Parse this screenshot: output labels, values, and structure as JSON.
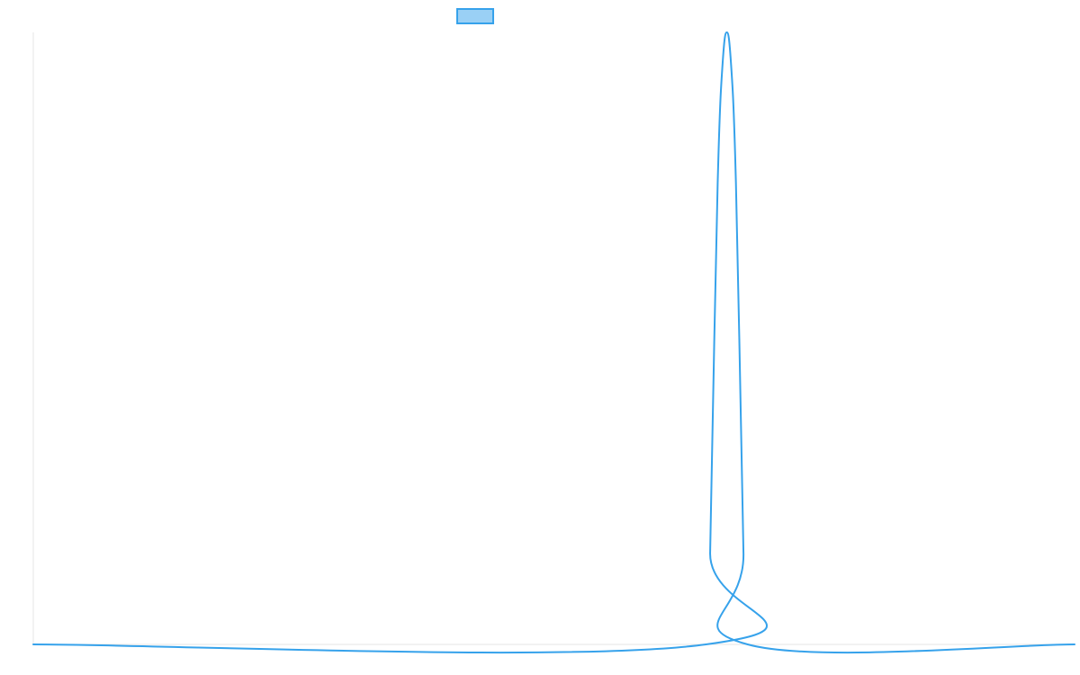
{
  "chart_data": {
    "type": "line",
    "title": "",
    "xlabel": "",
    "ylabel": "",
    "legend": {
      "placement": "top-center",
      "entries": [
        {
          "label": "",
          "color": "#36a2eb",
          "fill": "#9ad0f5"
        }
      ]
    },
    "grid": false,
    "xlim": [
      0,
      1000
    ],
    "ylim": [
      0,
      1
    ],
    "series": [
      {
        "color": "#36a2eb",
        "x": [
          0,
          646,
          650,
          654,
          658,
          662,
          666,
          670,
          674,
          678,
          682,
          686,
          1000
        ],
        "values": [
          0,
          0,
          0.15,
          0.5,
          0.8,
          0.95,
          1.0,
          0.95,
          0.8,
          0.5,
          0.15,
          0,
          0
        ]
      }
    ]
  },
  "colors": {
    "series": "#36a2eb",
    "legend_fill": "#9ad0f5",
    "axis": "#e5e5e5"
  }
}
